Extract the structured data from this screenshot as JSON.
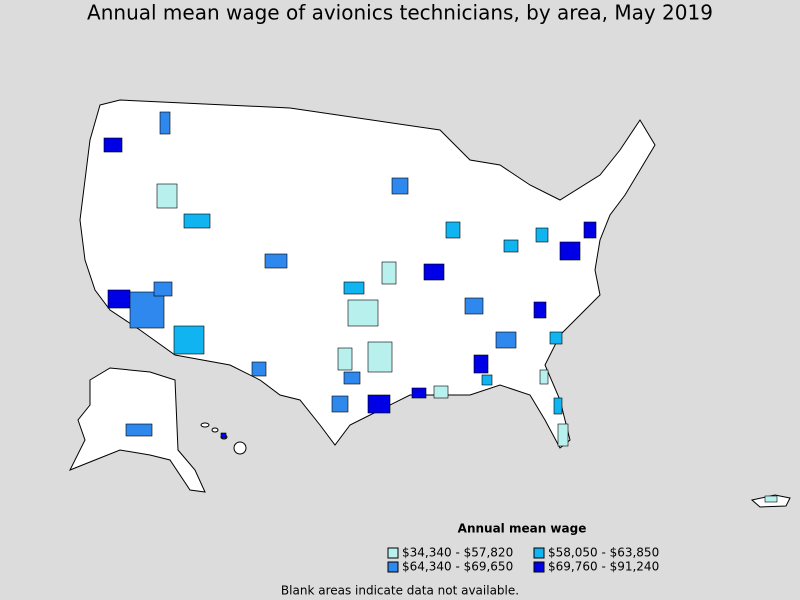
{
  "title": "Annual mean wage of avionics technicians, by area, May 2019",
  "legend": {
    "title": "Annual mean wage",
    "items": [
      {
        "label": "$34,340 - $57,820",
        "color": "#b8f0ee"
      },
      {
        "label": "$64,340 - $69,650",
        "color": "#2e88ee"
      },
      {
        "label": "$58,050 - $63,850",
        "color": "#10b4f0"
      },
      {
        "label": "$69,760 - $91,240",
        "color": "#0000e6"
      }
    ]
  },
  "note": "Blank areas indicate data not available."
}
